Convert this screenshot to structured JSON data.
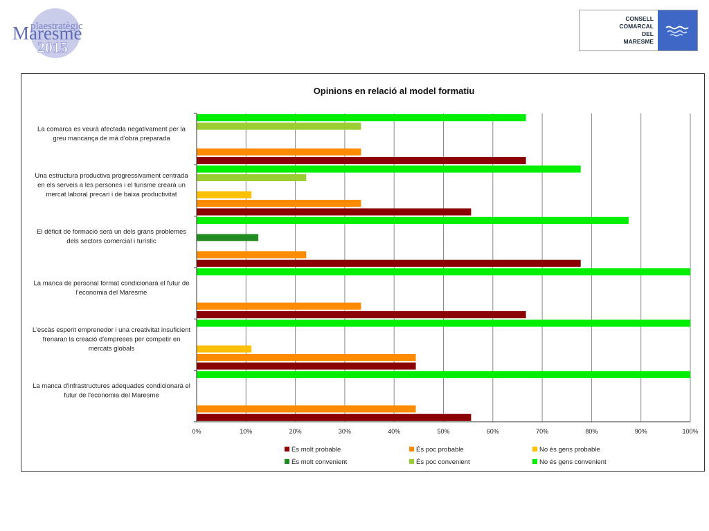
{
  "logo_left": {
    "line1": "plaestratègic",
    "line2": "Maresme",
    "line3": "2015"
  },
  "logo_right": {
    "lines": [
      "CONSELL",
      "COMARCAL",
      "DEL",
      "MARESME"
    ]
  },
  "chart_data": {
    "type": "bar",
    "orientation": "horizontal",
    "title": "Opinions en relació al model formatiu",
    "xlim": [
      0,
      100
    ],
    "x_ticks": [
      "0%",
      "10%",
      "20%",
      "30%",
      "40%",
      "50%",
      "60%",
      "70%",
      "80%",
      "90%",
      "100%"
    ],
    "grid": true,
    "legend_position": "bottom",
    "categories": [
      [
        "La comarca es veurà afectada negativament per la",
        "greu mancança de mà d'obra preparada"
      ],
      [
        "Una estructura productiva progressivament centrada",
        "en els serveis a les persones i el turisme crearà un",
        "mercat laboral precari i de baixa productivitat"
      ],
      [
        "El dèficit de formació serà un dels grans problemes",
        "dels sectors comercial i turístic"
      ],
      [
        "La manca de personal format condicionarà el futur de",
        "l'economia del Maresme"
      ],
      [
        "L'escàs esperit emprenedor i una creativitat insuficient",
        "frenaran la creació d'empreses per competir en",
        "mercats globals"
      ],
      [
        "La manca d'infrastructures adequades condicionarà el",
        "futur de l'economia del Maresme"
      ]
    ],
    "series": [
      {
        "name": "És molt probable",
        "color": "#8b0000",
        "values": [
          66.7,
          55.6,
          77.8,
          66.7,
          44.4,
          55.6
        ]
      },
      {
        "name": "És poc probable",
        "color": "#ff8c00",
        "values": [
          33.3,
          33.3,
          22.2,
          33.3,
          44.4,
          44.4
        ]
      },
      {
        "name": "No és gens probable",
        "color": "#ffc000",
        "values": [
          0,
          11.1,
          0,
          0,
          11.1,
          0
        ]
      },
      {
        "name": "És molt convenient",
        "color": "#228b22",
        "values": [
          0,
          0,
          12.5,
          0,
          0,
          0
        ]
      },
      {
        "name": "És poc convenient",
        "color": "#9acd32",
        "values": [
          33.3,
          22.2,
          0,
          0,
          0,
          0
        ]
      },
      {
        "name": "No és gens convenient",
        "color": "#00ee00",
        "values": [
          66.7,
          77.8,
          87.5,
          100,
          100,
          100
        ]
      }
    ]
  }
}
